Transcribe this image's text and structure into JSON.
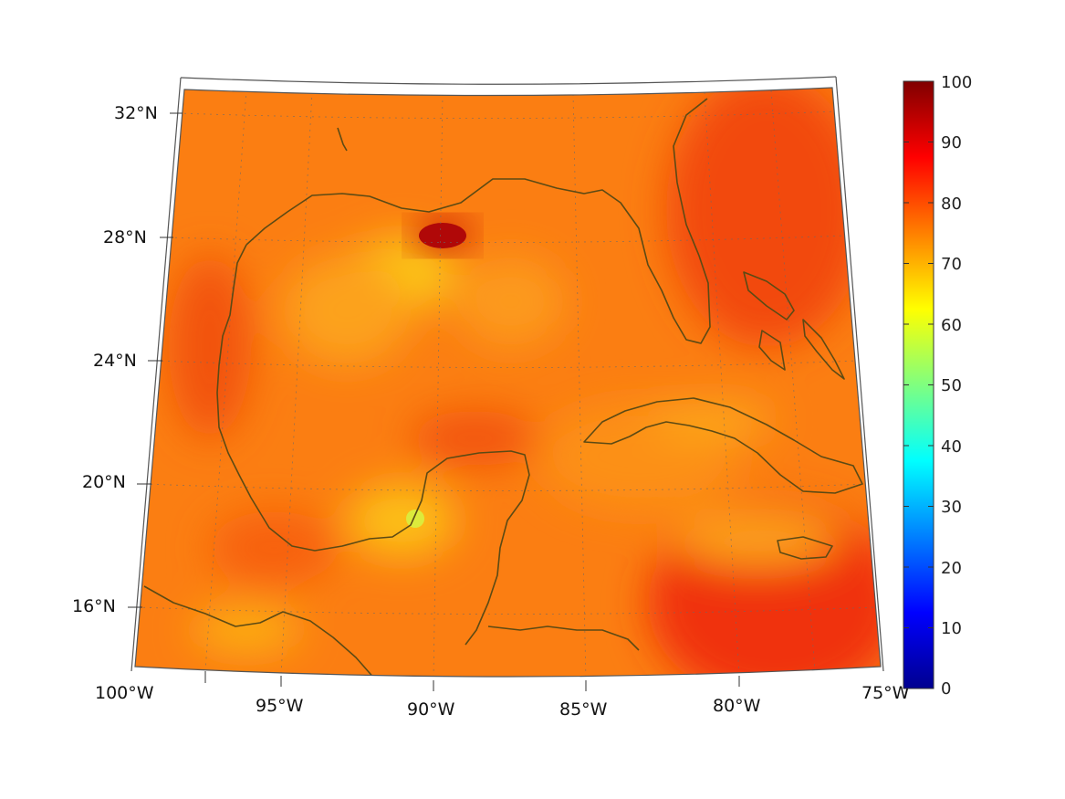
{
  "map": {
    "lat_labels": [
      "32°N",
      "28°N",
      "24°N",
      "20°N",
      "16°N"
    ],
    "lon_labels": [
      "100°W",
      "95°W",
      "90°W",
      "85°W",
      "80°W",
      "75°W"
    ],
    "projection": "conic",
    "extent": {
      "lon_min": -100,
      "lon_max": -75,
      "lat_min": 14,
      "lat_max": 33
    },
    "coastline_color": "#5c4a14",
    "grid": "dotted"
  },
  "colorbar": {
    "min": 0,
    "max": 100,
    "tick_labels": [
      "100",
      "90",
      "80",
      "70",
      "60",
      "50",
      "40",
      "30",
      "20",
      "10",
      "0"
    ],
    "colormap": "jet",
    "colors": [
      "#00008f",
      "#0000ff",
      "#00ffff",
      "#ffff00",
      "#ff0000",
      "#800000"
    ]
  },
  "field": {
    "dominant_range": [
      70,
      85
    ],
    "maxima": [
      {
        "place": "Mississippi delta",
        "value": 92
      },
      {
        "place": "Atlantic east of Florida",
        "value": 84
      },
      {
        "place": "Caribbean south of Jamaica",
        "value": 84
      }
    ],
    "minima": [
      {
        "place": "Bay of Campeche coast",
        "value": 58
      },
      {
        "place": "Central Gulf",
        "value": 65
      }
    ]
  }
}
